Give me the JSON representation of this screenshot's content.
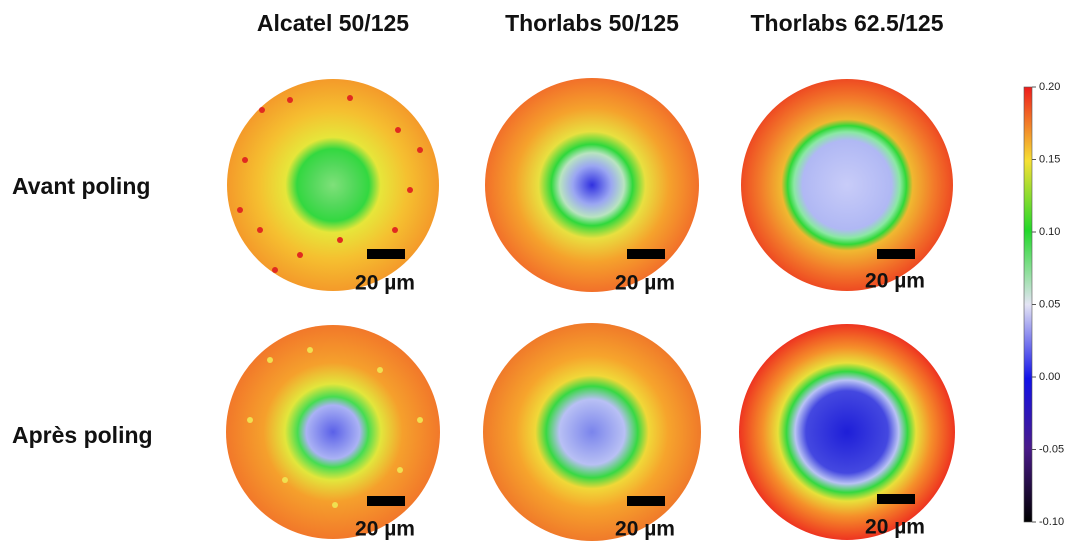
{
  "columns": [
    "Alcatel 50/125",
    "Thorlabs 50/125",
    "Thorlabs 62.5/125"
  ],
  "rows": [
    "Avant poling",
    "Après poling"
  ],
  "scale_bar_label": "20 µm",
  "colorbar": {
    "range": [
      -0.1,
      0.2
    ],
    "ticks": [
      {
        "value": 0.2,
        "label": "0.20"
      },
      {
        "value": 0.15,
        "label": "0.15"
      },
      {
        "value": 0.1,
        "label": "0.10"
      },
      {
        "value": 0.05,
        "label": "0.05"
      },
      {
        "value": 0,
        "label": "0.00"
      },
      {
        "value": -0.05,
        "label": "-0.05"
      },
      {
        "value": -0.1,
        "label": "-0.10"
      }
    ]
  }
}
